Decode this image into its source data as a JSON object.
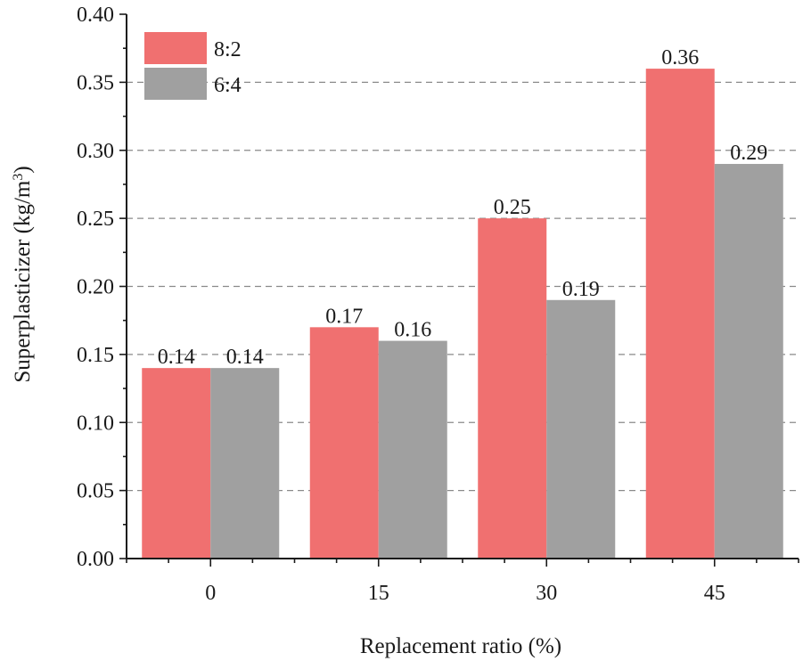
{
  "chart_data": {
    "type": "bar",
    "categories": [
      "0",
      "15",
      "30",
      "45"
    ],
    "series": [
      {
        "name": "8:2",
        "values": [
          0.14,
          0.17,
          0.25,
          0.36
        ],
        "color": "#f07070"
      },
      {
        "name": "6:4",
        "values": [
          0.14,
          0.16,
          0.19,
          0.29
        ],
        "color": "#a0a0a0"
      }
    ],
    "data_labels": [
      [
        "0.14",
        "0.17",
        "0.25",
        "0.36"
      ],
      [
        "0.14",
        "0.16",
        "0.19",
        "0.29"
      ]
    ],
    "xlabel": "Replacement ratio (%)",
    "ylabel_main": "Superplasticizer (kg/m",
    "ylabel_sup": "3",
    "ylabel_close": ")",
    "ylim": [
      0,
      0.4
    ],
    "yticks": [
      "0.00",
      "0.05",
      "0.10",
      "0.15",
      "0.20",
      "0.25",
      "0.30",
      "0.35",
      "0.40"
    ],
    "grid": "horizontal dashed",
    "legend_position": "top-left"
  }
}
